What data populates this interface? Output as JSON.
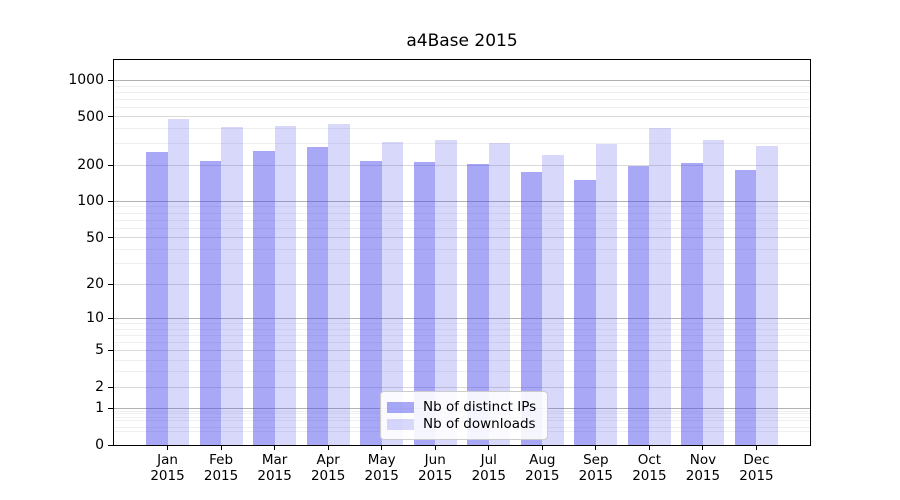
{
  "title": "a4Base 2015",
  "chart_data": {
    "type": "bar",
    "title": "a4Base 2015",
    "categories": [
      "Jan",
      "Feb",
      "Mar",
      "Apr",
      "May",
      "Jun",
      "Jul",
      "Aug",
      "Sep",
      "Oct",
      "Nov",
      "Dec"
    ],
    "year": "2015",
    "series": [
      {
        "name": "Nb of distinct IPs",
        "color": "rgba(70,70,238,0.47)",
        "values": [
          255,
          215,
          263,
          285,
          218,
          211,
          205,
          177,
          152,
          195,
          210,
          184
        ]
      },
      {
        "name": "Nb of downloads",
        "color": "rgba(70,70,238,0.21)",
        "values": [
          478,
          416,
          421,
          435,
          312,
          322,
          304,
          243,
          302,
          406,
          320,
          289
        ]
      }
    ],
    "xlabel": "",
    "ylabel": "",
    "yscale": "log1p",
    "yticks": [
      0,
      1,
      2,
      5,
      10,
      20,
      50,
      100,
      200,
      500,
      1000
    ],
    "ylim": [
      0,
      1400
    ],
    "grid": true,
    "legend_position": "lower center",
    "gridline_colors": {
      "decade": "#b2b2b2",
      "major": "#d9d9d9",
      "minor": "#efefef"
    }
  }
}
